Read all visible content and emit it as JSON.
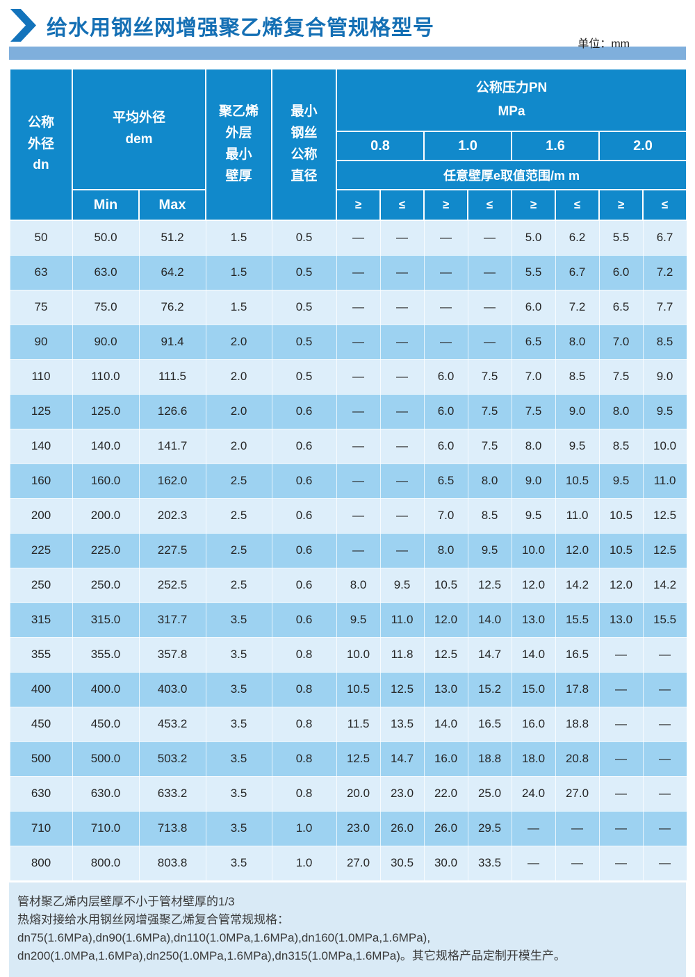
{
  "title": "给水用钢丝网增强聚乙烯复合管规格型号",
  "unit": "单位：mm",
  "colors": {
    "accent_blue": "#146fb4",
    "header_blue": "#1189cb",
    "row_light": "#ddeefa",
    "row_dark": "#9dd2f1",
    "bar_blue": "#7fafdc",
    "note_bg": "#d9eaf6"
  },
  "table": {
    "headers": {
      "dn": "公称\n外径\ndn",
      "dem": "平均外径\ndem",
      "dem_min": "Min",
      "dem_max": "Max",
      "pe_wall": "聚乙烯\n外层\n最小\n壁厚",
      "wire": "最小\n钢丝\n公称\n直径",
      "pn": "公称压力PN\nMPa",
      "pn_levels": [
        "0.8",
        "1.0",
        "1.6",
        "2.0"
      ],
      "e_range": "任意壁厚e取值范围/m m",
      "ge": "≥",
      "le": "≤"
    },
    "rows": [
      {
        "dn": "50",
        "min": "50.0",
        "max": "51.2",
        "pe": "1.5",
        "wire": "0.5",
        "e": [
          "—",
          "—",
          "—",
          "—",
          "5.0",
          "6.2",
          "5.5",
          "6.7"
        ]
      },
      {
        "dn": "63",
        "min": "63.0",
        "max": "64.2",
        "pe": "1.5",
        "wire": "0.5",
        "e": [
          "—",
          "—",
          "—",
          "—",
          "5.5",
          "6.7",
          "6.0",
          "7.2"
        ]
      },
      {
        "dn": "75",
        "min": "75.0",
        "max": "76.2",
        "pe": "1.5",
        "wire": "0.5",
        "e": [
          "—",
          "—",
          "—",
          "—",
          "6.0",
          "7.2",
          "6.5",
          "7.7"
        ]
      },
      {
        "dn": "90",
        "min": "90.0",
        "max": "91.4",
        "pe": "2.0",
        "wire": "0.5",
        "e": [
          "—",
          "—",
          "—",
          "—",
          "6.5",
          "8.0",
          "7.0",
          "8.5"
        ]
      },
      {
        "dn": "110",
        "min": "110.0",
        "max": "111.5",
        "pe": "2.0",
        "wire": "0.5",
        "e": [
          "—",
          "—",
          "6.0",
          "7.5",
          "7.0",
          "8.5",
          "7.5",
          "9.0"
        ]
      },
      {
        "dn": "125",
        "min": "125.0",
        "max": "126.6",
        "pe": "2.0",
        "wire": "0.6",
        "e": [
          "—",
          "—",
          "6.0",
          "7.5",
          "7.5",
          "9.0",
          "8.0",
          "9.5"
        ]
      },
      {
        "dn": "140",
        "min": "140.0",
        "max": "141.7",
        "pe": "2.0",
        "wire": "0.6",
        "e": [
          "—",
          "—",
          "6.0",
          "7.5",
          "8.0",
          "9.5",
          "8.5",
          "10.0"
        ]
      },
      {
        "dn": "160",
        "min": "160.0",
        "max": "162.0",
        "pe": "2.5",
        "wire": "0.6",
        "e": [
          "—",
          "—",
          "6.5",
          "8.0",
          "9.0",
          "10.5",
          "9.5",
          "11.0"
        ]
      },
      {
        "dn": "200",
        "min": "200.0",
        "max": "202.3",
        "pe": "2.5",
        "wire": "0.6",
        "e": [
          "—",
          "—",
          "7.0",
          "8.5",
          "9.5",
          "11.0",
          "10.5",
          "12.5"
        ]
      },
      {
        "dn": "225",
        "min": "225.0",
        "max": "227.5",
        "pe": "2.5",
        "wire": "0.6",
        "e": [
          "—",
          "—",
          "8.0",
          "9.5",
          "10.0",
          "12.0",
          "10.5",
          "12.5"
        ]
      },
      {
        "dn": "250",
        "min": "250.0",
        "max": "252.5",
        "pe": "2.5",
        "wire": "0.6",
        "e": [
          "8.0",
          "9.5",
          "10.5",
          "12.5",
          "12.0",
          "14.2",
          "12.0",
          "14.2"
        ]
      },
      {
        "dn": "315",
        "min": "315.0",
        "max": "317.7",
        "pe": "3.5",
        "wire": "0.6",
        "e": [
          "9.5",
          "11.0",
          "12.0",
          "14.0",
          "13.0",
          "15.5",
          "13.0",
          "15.5"
        ]
      },
      {
        "dn": "355",
        "min": "355.0",
        "max": "357.8",
        "pe": "3.5",
        "wire": "0.8",
        "e": [
          "10.0",
          "11.8",
          "12.5",
          "14.7",
          "14.0",
          "16.5",
          "—",
          "—"
        ]
      },
      {
        "dn": "400",
        "min": "400.0",
        "max": "403.0",
        "pe": "3.5",
        "wire": "0.8",
        "e": [
          "10.5",
          "12.5",
          "13.0",
          "15.2",
          "15.0",
          "17.8",
          "—",
          "—"
        ]
      },
      {
        "dn": "450",
        "min": "450.0",
        "max": "453.2",
        "pe": "3.5",
        "wire": "0.8",
        "e": [
          "11.5",
          "13.5",
          "14.0",
          "16.5",
          "16.0",
          "18.8",
          "—",
          "—"
        ]
      },
      {
        "dn": "500",
        "min": "500.0",
        "max": "503.2",
        "pe": "3.5",
        "wire": "0.8",
        "e": [
          "12.5",
          "14.7",
          "16.0",
          "18.8",
          "18.0",
          "20.8",
          "—",
          "—"
        ]
      },
      {
        "dn": "630",
        "min": "630.0",
        "max": "633.2",
        "pe": "3.5",
        "wire": "0.8",
        "e": [
          "20.0",
          "23.0",
          "22.0",
          "25.0",
          "24.0",
          "27.0",
          "—",
          "—"
        ]
      },
      {
        "dn": "710",
        "min": "710.0",
        "max": "713.8",
        "pe": "3.5",
        "wire": "1.0",
        "e": [
          "23.0",
          "26.0",
          "26.0",
          "29.5",
          "—",
          "—",
          "—",
          "—"
        ]
      },
      {
        "dn": "800",
        "min": "800.0",
        "max": "803.8",
        "pe": "3.5",
        "wire": "1.0",
        "e": [
          "27.0",
          "30.5",
          "30.0",
          "33.5",
          "—",
          "—",
          "—",
          "—"
        ]
      }
    ]
  },
  "notes": [
    "管材聚乙烯内层壁厚不小于管材壁厚的1/3",
    "热熔对接给水用钢丝网增强聚乙烯复合管常规规格：dn75(1.6MPa),dn90(1.6MPa),dn110(1.0MPa,1.6MPa),dn160(1.0MPa,1.6MPa),",
    "dn200(1.0MPa,1.6MPa),dn250(1.0MPa,1.6MPa),dn315(1.0MPa,1.6MPa)。其它规格产品定制开模生产。"
  ]
}
